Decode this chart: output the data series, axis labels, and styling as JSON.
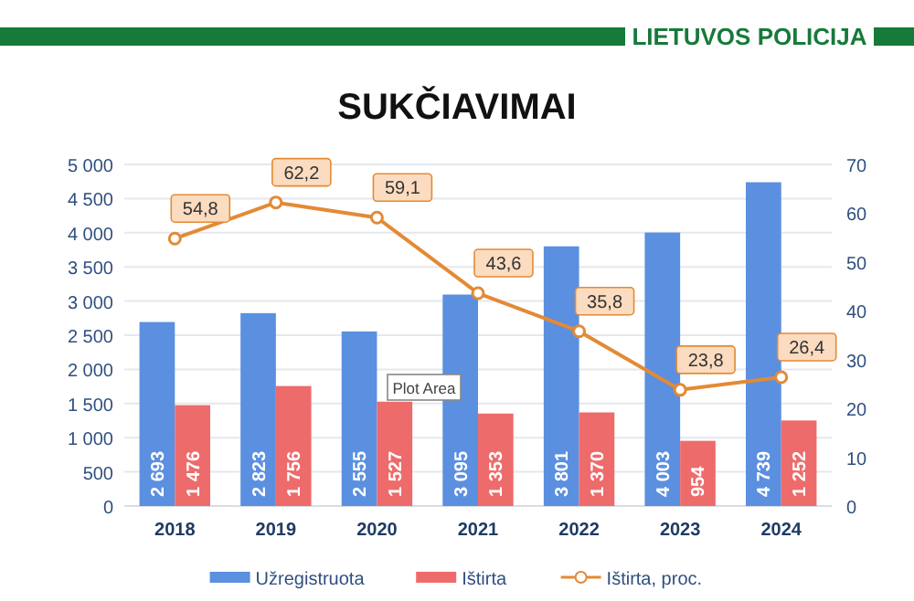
{
  "chart_data": {
    "type": "bar",
    "title": "SUKČIAVIMAI",
    "annotations": [
      "LIETUVOS POLICIJA",
      "Plot Area"
    ],
    "categories": [
      "2018",
      "2019",
      "2020",
      "2021",
      "2022",
      "2023",
      "2024"
    ],
    "series": [
      {
        "name": "Užregistruota",
        "color": "#5b8fe0",
        "values": [
          2693,
          2823,
          2555,
          3095,
          3801,
          4003,
          4739
        ],
        "value_labels": [
          "2 693",
          "2 823",
          "2 555",
          "3 095",
          "3 801",
          "4 003",
          "4 739"
        ]
      },
      {
        "name": "Ištirta",
        "color": "#ee6b6b",
        "values": [
          1476,
          1756,
          1527,
          1353,
          1370,
          954,
          1252
        ],
        "value_labels": [
          "1 476",
          "1 756",
          "1 527",
          "1 353",
          "1 370",
          "954",
          "1 252"
        ]
      },
      {
        "name": "Ištirta, proc.",
        "type": "line",
        "axis": "y2",
        "color": "#e38a35",
        "marker": "circle",
        "values": [
          54.8,
          62.2,
          59.1,
          43.6,
          35.8,
          23.8,
          26.4
        ],
        "value_labels": [
          "54,8",
          "62,2",
          "59,1",
          "43,6",
          "35,8",
          "23,8",
          "26,4"
        ]
      }
    ],
    "ylim": [
      0,
      5000
    ],
    "yticks": [
      {
        "value": 0,
        "label": "0"
      },
      {
        "value": 500,
        "label": "500"
      },
      {
        "value": 1000,
        "label": "1 000"
      },
      {
        "value": 1500,
        "label": "1 500"
      },
      {
        "value": 2000,
        "label": "2 000"
      },
      {
        "value": 2500,
        "label": "2 500"
      },
      {
        "value": 3000,
        "label": "3 000"
      },
      {
        "value": 3500,
        "label": "3 500"
      },
      {
        "value": 4000,
        "label": "4 000"
      },
      {
        "value": 4500,
        "label": "4 500"
      },
      {
        "value": 5000,
        "label": "5 000"
      }
    ],
    "y2lim": [
      0,
      70
    ],
    "y2ticks": [
      0,
      10,
      20,
      30,
      40,
      50,
      60,
      70
    ],
    "grid": "y",
    "legend": "bottom"
  }
}
